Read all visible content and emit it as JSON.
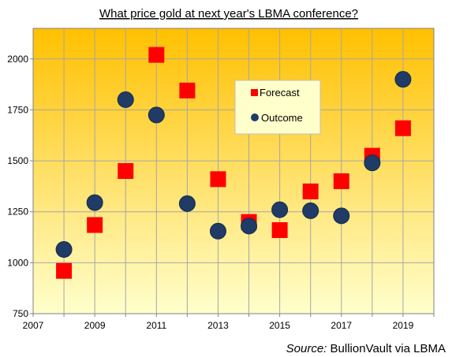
{
  "chart_data": {
    "type": "scatter",
    "title": "What price gold at next year's LBMA conference?",
    "xlim": [
      2007,
      2020
    ],
    "ylim": [
      750,
      2150
    ],
    "x_ticks": [
      2007,
      2009,
      2011,
      2013,
      2015,
      2017,
      2019
    ],
    "y_ticks": [
      750,
      1000,
      1250,
      1500,
      1750,
      2000
    ],
    "grid": true,
    "legend_position": "top-center",
    "series": [
      {
        "name": "Forecast",
        "marker": "square",
        "color": "#ff0000",
        "points": [
          {
            "x": 2008,
            "y": 960
          },
          {
            "x": 2009,
            "y": 1185
          },
          {
            "x": 2010,
            "y": 1450
          },
          {
            "x": 2011,
            "y": 2020
          },
          {
            "x": 2012,
            "y": 1845
          },
          {
            "x": 2013,
            "y": 1410
          },
          {
            "x": 2014,
            "y": 1200
          },
          {
            "x": 2015,
            "y": 1160
          },
          {
            "x": 2016,
            "y": 1350
          },
          {
            "x": 2017,
            "y": 1400
          },
          {
            "x": 2018,
            "y": 1525
          },
          {
            "x": 2019,
            "y": 1660
          }
        ]
      },
      {
        "name": "Outcome",
        "marker": "circle",
        "color": "#1f3b66",
        "points": [
          {
            "x": 2008,
            "y": 1065
          },
          {
            "x": 2009,
            "y": 1295
          },
          {
            "x": 2010,
            "y": 1800
          },
          {
            "x": 2011,
            "y": 1725
          },
          {
            "x": 2012,
            "y": 1290
          },
          {
            "x": 2013,
            "y": 1155
          },
          {
            "x": 2014,
            "y": 1180
          },
          {
            "x": 2015,
            "y": 1260
          },
          {
            "x": 2016,
            "y": 1255
          },
          {
            "x": 2017,
            "y": 1230
          },
          {
            "x": 2018,
            "y": 1490
          },
          {
            "x": 2019,
            "y": 1900
          }
        ]
      }
    ],
    "source_label": "Source:",
    "source_text": " BullionVault via LBMA"
  },
  "colors": {
    "gradient_top": "#ffc000",
    "gradient_bottom": "#ffffcc",
    "gridline": "#a6a6a6",
    "legend_bg": "#ffffcc"
  }
}
